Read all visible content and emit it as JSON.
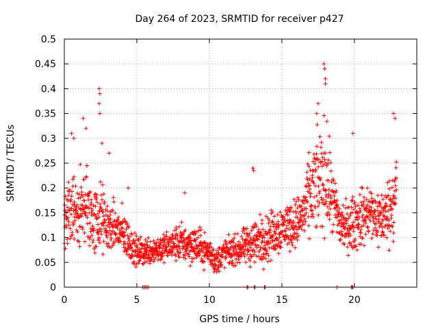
{
  "chart_data": {
    "type": "scatter",
    "title": "Day 264 of 2023, SRMTID for receiver p427",
    "xlabel": "GPS time / hours",
    "ylabel": "SRMTID / TECUs",
    "xlim": [
      0,
      24.3
    ],
    "ylim": [
      0,
      0.5
    ],
    "grid": true,
    "grid_style": "dotted",
    "marker": "plus",
    "color": "#ff0000",
    "xticks": [
      0,
      5,
      10,
      15,
      20
    ],
    "xtick_labels": [
      "0",
      "5",
      "10",
      "15",
      "20"
    ],
    "yticks": [
      0,
      0.05,
      0.1,
      0.15,
      0.2,
      0.25,
      0.3,
      0.35,
      0.4,
      0.45,
      0.5
    ],
    "ytick_labels": [
      "0",
      "0.05",
      "0.1",
      "0.15",
      "0.2",
      "0.25",
      "0.3",
      "0.35",
      "0.4",
      "0.45",
      "0.5"
    ],
    "series": [
      {
        "name": "SRMTID",
        "envelope": {
          "x": [
            0,
            0.5,
            1.0,
            1.5,
            2.0,
            2.5,
            3.0,
            3.5,
            4.0,
            4.5,
            5.0,
            6.0,
            7.0,
            8.0,
            9.0,
            10.0,
            10.5,
            11.0,
            12.0,
            13.0,
            14.0,
            15.0,
            16.0,
            16.5,
            17.0,
            17.5,
            18.0,
            18.5,
            19.0,
            19.5,
            20.0,
            20.5,
            21.0,
            21.5,
            22.0,
            22.5,
            22.9
          ],
          "mean": [
            0.13,
            0.16,
            0.15,
            0.17,
            0.13,
            0.14,
            0.12,
            0.12,
            0.11,
            0.09,
            0.07,
            0.075,
            0.08,
            0.09,
            0.085,
            0.07,
            0.05,
            0.07,
            0.075,
            0.09,
            0.1,
            0.12,
            0.13,
            0.15,
            0.19,
            0.21,
            0.23,
            0.17,
            0.13,
            0.12,
            0.13,
            0.14,
            0.15,
            0.14,
            0.14,
            0.16,
            0.2
          ],
          "spread": [
            0.05,
            0.08,
            0.08,
            0.09,
            0.07,
            0.08,
            0.05,
            0.05,
            0.05,
            0.04,
            0.03,
            0.03,
            0.03,
            0.04,
            0.04,
            0.03,
            0.03,
            0.03,
            0.03,
            0.05,
            0.05,
            0.05,
            0.05,
            0.06,
            0.09,
            0.1,
            0.12,
            0.07,
            0.06,
            0.05,
            0.06,
            0.06,
            0.06,
            0.06,
            0.06,
            0.07,
            0.09
          ]
        },
        "peaks": [
          {
            "x": 0.5,
            "y": 0.31
          },
          {
            "x": 0.65,
            "y": 0.3
          },
          {
            "x": 1.3,
            "y": 0.34
          },
          {
            "x": 1.5,
            "y": 0.32
          },
          {
            "x": 2.4,
            "y": 0.4
          },
          {
            "x": 2.45,
            "y": 0.39
          },
          {
            "x": 2.4,
            "y": 0.37
          },
          {
            "x": 2.45,
            "y": 0.35
          },
          {
            "x": 2.6,
            "y": 0.29
          },
          {
            "x": 3.1,
            "y": 0.27
          },
          {
            "x": 4.4,
            "y": 0.2
          },
          {
            "x": 8.3,
            "y": 0.19
          },
          {
            "x": 13.0,
            "y": 0.24
          },
          {
            "x": 13.05,
            "y": 0.235
          },
          {
            "x": 17.5,
            "y": 0.37
          },
          {
            "x": 17.4,
            "y": 0.35
          },
          {
            "x": 17.9,
            "y": 0.45
          },
          {
            "x": 17.95,
            "y": 0.44
          },
          {
            "x": 18.0,
            "y": 0.42
          },
          {
            "x": 18.0,
            "y": 0.41
          },
          {
            "x": 19.9,
            "y": 0.31
          },
          {
            "x": 22.7,
            "y": 0.35
          },
          {
            "x": 22.8,
            "y": 0.34
          }
        ],
        "zeros_x": [
          5.4,
          5.5,
          5.6,
          5.7,
          5.8,
          12.6,
          12.65,
          13.1,
          13.15,
          13.8,
          13.85,
          18.8,
          19.8,
          19.85,
          19.9
        ]
      }
    ]
  }
}
